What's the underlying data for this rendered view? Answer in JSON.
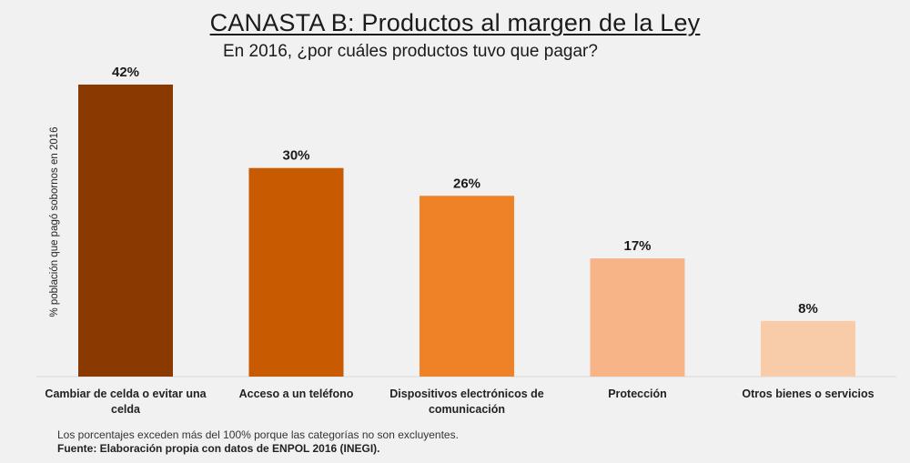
{
  "chart_data": {
    "type": "bar",
    "title": "CANASTA B: Productos al margen de la Ley",
    "subtitle": "En 2016, ¿por cuáles productos tuvo que pagar?",
    "xlabel": "",
    "ylabel": "% población que pagó sobornos en 2016",
    "categories": [
      "Cambiar de celda o evitar una celda",
      "Acceso a un teléfono",
      "Dispositivos electrónicos de comunicación",
      "Protección",
      "Otros bienes o servicios"
    ],
    "values": [
      42,
      30,
      26,
      17,
      8
    ],
    "value_labels": [
      "42%",
      "30%",
      "26%",
      "17%",
      "8%"
    ],
    "colors": [
      "#8a3a00",
      "#c85a02",
      "#ef8127",
      "#f6b487",
      "#f9cca9"
    ],
    "ylim": [
      0,
      42
    ],
    "grid": false,
    "legend": "none"
  },
  "footer": {
    "note": "Los porcentajes exceden más del 100% porque las categorías no son excluyentes.",
    "source": "Fuente: Elaboración propia con datos de ENPOL 2016 (INEGI)."
  }
}
